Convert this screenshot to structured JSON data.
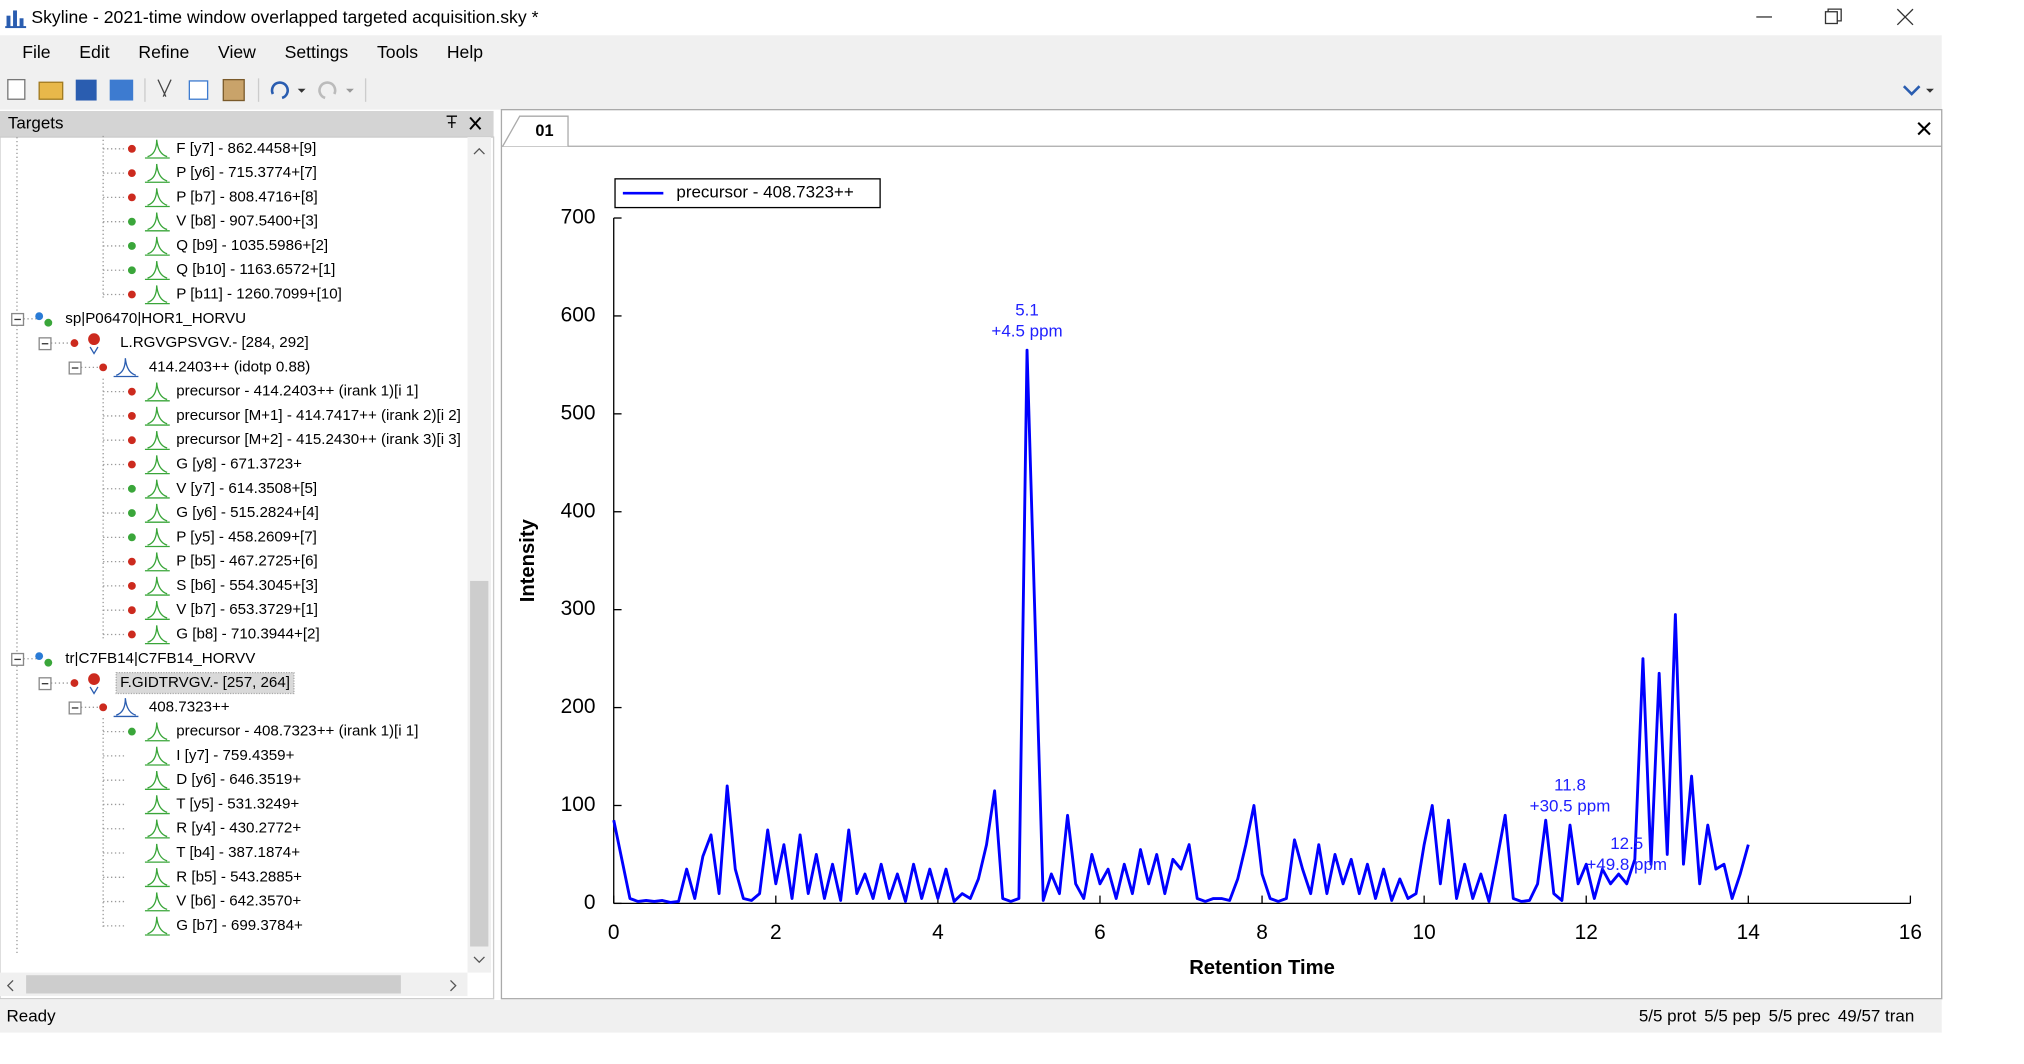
{
  "window": {
    "title": "Skyline - 2021-time window overlapped targeted acquisition.sky *"
  },
  "menu": [
    "File",
    "Edit",
    "Refine",
    "View",
    "Settings",
    "Tools",
    "Help"
  ],
  "targets": {
    "title": "Targets",
    "items": [
      {
        "kind": "transition",
        "status": "red",
        "text": "F [y7] - 862.4458+[9]"
      },
      {
        "kind": "transition",
        "status": "red",
        "text": "P [y6] - 715.3774+[7]"
      },
      {
        "kind": "transition",
        "status": "red",
        "text": "P [b7] - 808.4716+[8]"
      },
      {
        "kind": "transition",
        "status": "green",
        "text": "V [b8] - 907.5400+[3]"
      },
      {
        "kind": "transition",
        "status": "green",
        "text": "Q [b9] - 1035.5986+[2]"
      },
      {
        "kind": "transition",
        "status": "green",
        "text": "Q [b10] - 1163.6572+[1]"
      },
      {
        "kind": "transition",
        "status": "red",
        "text": "P [b11] - 1260.7099+[10]"
      },
      {
        "kind": "protein",
        "text": "sp|P06470|HOR1_HORVU"
      },
      {
        "kind": "peptide",
        "status": "red",
        "text": "L.RGVGPSVGV.- [284, 292]"
      },
      {
        "kind": "precursor",
        "status": "red",
        "text": "414.2403++ (idotp 0.88)"
      },
      {
        "kind": "transition",
        "status": "red",
        "text": "precursor - 414.2403++ (irank 1)[i 1]"
      },
      {
        "kind": "transition",
        "status": "red",
        "text": "precursor [M+1] - 414.7417++ (irank 2)[i 2]"
      },
      {
        "kind": "transition",
        "status": "red",
        "text": "precursor [M+2] - 415.2430++ (irank 3)[i 3]"
      },
      {
        "kind": "transition",
        "status": "red",
        "text": "G [y8] - 671.3723+"
      },
      {
        "kind": "transition",
        "status": "green",
        "text": "V [y7] - 614.3508+[5]"
      },
      {
        "kind": "transition",
        "status": "green",
        "text": "G [y6] - 515.2824+[4]"
      },
      {
        "kind": "transition",
        "status": "green",
        "text": "P [y5] - 458.2609+[7]"
      },
      {
        "kind": "transition",
        "status": "red",
        "text": "P [b5] - 467.2725+[6]"
      },
      {
        "kind": "transition",
        "status": "red",
        "text": "S [b6] - 554.3045+[3]"
      },
      {
        "kind": "transition",
        "status": "red",
        "text": "V [b7] - 653.3729+[1]"
      },
      {
        "kind": "transition",
        "status": "red",
        "text": "G [b8] - 710.3944+[2]"
      },
      {
        "kind": "protein",
        "text": "tr|C7FB14|C7FB14_HORVV"
      },
      {
        "kind": "peptide",
        "status": "red",
        "selected": true,
        "text": "F.GIDTRVGV.- [257, 264]"
      },
      {
        "kind": "precursor",
        "status": "red",
        "text": "408.7323++"
      },
      {
        "kind": "transition",
        "status": "green",
        "text": "precursor - 408.7323++ (irank 1)[i 1]"
      },
      {
        "kind": "transition",
        "text": "I [y7] - 759.4359+"
      },
      {
        "kind": "transition",
        "text": "D [y6] - 646.3519+"
      },
      {
        "kind": "transition",
        "text": "T [y5] - 531.3249+"
      },
      {
        "kind": "transition",
        "text": "R [y4] - 430.2772+"
      },
      {
        "kind": "transition",
        "text": "T [b4] - 387.1874+"
      },
      {
        "kind": "transition",
        "text": "R [b5] - 543.2885+"
      },
      {
        "kind": "transition",
        "text": "V [b6] - 642.3570+"
      },
      {
        "kind": "transition",
        "text": "G [b7] - 699.3784+"
      }
    ]
  },
  "tab": "01",
  "chart_data": {
    "type": "line",
    "xlabel": "Retention Time",
    "ylabel": "Intensity",
    "x": [
      0.0,
      0.1,
      0.2,
      0.3,
      0.4,
      0.5,
      0.6,
      0.7,
      0.8,
      0.9,
      1.0,
      1.1,
      1.2,
      1.3,
      1.4,
      1.5,
      1.6,
      1.7,
      1.8,
      1.9,
      2.0,
      2.1,
      2.2,
      2.3,
      2.4,
      2.5,
      2.6,
      2.7,
      2.8,
      2.9,
      3.0,
      3.1,
      3.2,
      3.3,
      3.4,
      3.5,
      3.6,
      3.7,
      3.8,
      3.9,
      4.0,
      4.1,
      4.2,
      4.3,
      4.4,
      4.5,
      4.6,
      4.7,
      4.8,
      4.9,
      5.0,
      5.1,
      5.2,
      5.3,
      5.4,
      5.5,
      5.6,
      5.7,
      5.8,
      5.9,
      6.0,
      6.1,
      6.2,
      6.3,
      6.4,
      6.5,
      6.6,
      6.7,
      6.8,
      6.9,
      7.0,
      7.1,
      7.2,
      7.3,
      7.4,
      7.5,
      7.6,
      7.7,
      7.8,
      7.9,
      8.0,
      8.1,
      8.2,
      8.3,
      8.4,
      8.5,
      8.6,
      8.7,
      8.8,
      8.9,
      9.0,
      9.1,
      9.2,
      9.3,
      9.4,
      9.5,
      9.6,
      9.7,
      9.8,
      9.9,
      10.0,
      10.1,
      10.2,
      10.3,
      10.4,
      10.5,
      10.6,
      10.7,
      10.8,
      10.9,
      11.0,
      11.1,
      11.2,
      11.3,
      11.4,
      11.5,
      11.6,
      11.7,
      11.8,
      11.9,
      12.0,
      12.1,
      12.2,
      12.3,
      12.4,
      12.5,
      12.6,
      12.7,
      12.8,
      12.9,
      13.0,
      13.1,
      13.2,
      13.3,
      13.4,
      13.5,
      13.6,
      13.7,
      13.8,
      13.9,
      14.0
    ],
    "series": [
      {
        "name": "precursor - 408.7323++",
        "color": "#0000ff",
        "values": [
          85,
          45,
          5,
          2,
          3,
          2,
          3,
          1,
          2,
          35,
          5,
          48,
          70,
          10,
          120,
          35,
          5,
          3,
          10,
          75,
          20,
          60,
          5,
          70,
          10,
          50,
          5,
          40,
          3,
          75,
          10,
          30,
          5,
          40,
          5,
          30,
          2,
          40,
          5,
          35,
          5,
          35,
          2,
          10,
          5,
          25,
          60,
          115,
          5,
          2,
          5,
          565,
          285,
          3,
          30,
          10,
          90,
          20,
          5,
          50,
          20,
          35,
          5,
          40,
          10,
          55,
          20,
          50,
          10,
          45,
          35,
          60,
          5,
          2,
          5,
          5,
          3,
          25,
          60,
          100,
          30,
          5,
          2,
          5,
          65,
          35,
          10,
          60,
          10,
          50,
          20,
          45,
          10,
          40,
          5,
          35,
          3,
          25,
          5,
          10,
          60,
          100,
          20,
          85,
          5,
          40,
          5,
          30,
          2,
          45,
          90,
          5,
          2,
          3,
          20,
          85,
          10,
          3,
          80,
          20,
          40,
          5,
          35,
          20,
          30,
          20,
          45,
          250,
          40,
          235,
          50,
          295,
          40,
          130,
          20,
          80,
          35,
          40,
          5,
          30,
          60
        ]
      }
    ],
    "annotations": [
      {
        "label": "5.1",
        "note": "+4.5 ppm"
      },
      {
        "label": "11.8",
        "note": "+30.5 ppm"
      },
      {
        "label": "12.5",
        "note": "+49.8 ppm"
      }
    ],
    "xlim": [
      0,
      16
    ],
    "xticks": [
      0,
      2,
      4,
      6,
      8,
      10,
      12,
      14,
      16
    ],
    "ylim": [
      0,
      700
    ],
    "yticks": [
      0,
      100,
      200,
      300,
      400,
      500,
      600,
      700
    ],
    "legend": "upper left"
  },
  "status": {
    "ready": "Ready",
    "counts": [
      "5/5 prot",
      "5/5 pep",
      "5/5 prec",
      "49/57 tran"
    ]
  }
}
